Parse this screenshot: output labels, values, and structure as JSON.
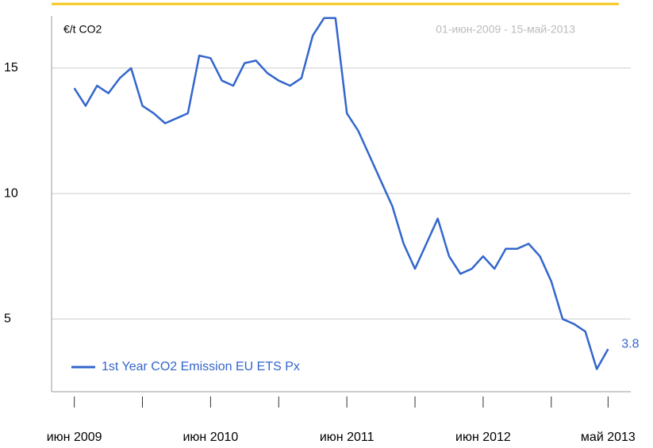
{
  "chart_data": {
    "type": "line",
    "title": "€/t CO2",
    "subtitle": "01-июн-2009 - 15-май-2013",
    "x": [
      "2009-06",
      "2009-07",
      "2009-08",
      "2009-09",
      "2009-10",
      "2009-11",
      "2009-12",
      "2010-01",
      "2010-02",
      "2010-03",
      "2010-04",
      "2010-05",
      "2010-06",
      "2010-07",
      "2010-08",
      "2010-09",
      "2010-10",
      "2010-11",
      "2010-12",
      "2011-01",
      "2011-02",
      "2011-03",
      "2011-04",
      "2011-05",
      "2011-06",
      "2011-07",
      "2011-08",
      "2011-09",
      "2011-10",
      "2011-11",
      "2011-12",
      "2012-01",
      "2012-02",
      "2012-03",
      "2012-04",
      "2012-05",
      "2012-06",
      "2012-07",
      "2012-08",
      "2012-09",
      "2012-10",
      "2012-11",
      "2012-12",
      "2013-01",
      "2013-02",
      "2013-03",
      "2013-04",
      "2013-05"
    ],
    "series": [
      {
        "name": "1st Year CO2 Emission EU ETS Px",
        "color": "#3366cc",
        "values": [
          14.2,
          13.5,
          14.3,
          14.0,
          14.6,
          15.0,
          13.5,
          13.2,
          12.8,
          13.0,
          13.2,
          15.5,
          15.4,
          14.5,
          14.3,
          15.2,
          15.3,
          14.8,
          14.5,
          14.3,
          14.6,
          16.3,
          17.0,
          17.0,
          13.2,
          12.5,
          11.5,
          10.5,
          9.5,
          8.0,
          7.0,
          8.0,
          9.0,
          7.5,
          6.8,
          7.0,
          7.5,
          7.0,
          7.8,
          7.8,
          8.0,
          7.5,
          6.5,
          5.0,
          4.8,
          4.5,
          3.0,
          3.8
        ],
        "value_labels": {
          "47": "3.8"
        }
      }
    ],
    "xlim": [
      "2009-04",
      "2013-07"
    ],
    "xticks": [
      {
        "value": "2009-06",
        "label": "июн 2009"
      },
      {
        "value": "2010-06",
        "label": "июн 2010"
      },
      {
        "value": "2011-06",
        "label": "июн 2011"
      },
      {
        "value": "2012-06",
        "label": "июн 2012"
      },
      {
        "value": "2013-05",
        "label": "май 2013"
      }
    ],
    "xminorticks": [
      "2009-12",
      "2010-12",
      "2011-12",
      "2012-12"
    ],
    "ylim": [
      2.1,
      17.4
    ],
    "yticks": [
      5,
      10,
      15
    ],
    "grid": true,
    "legend": "lower-left"
  }
}
